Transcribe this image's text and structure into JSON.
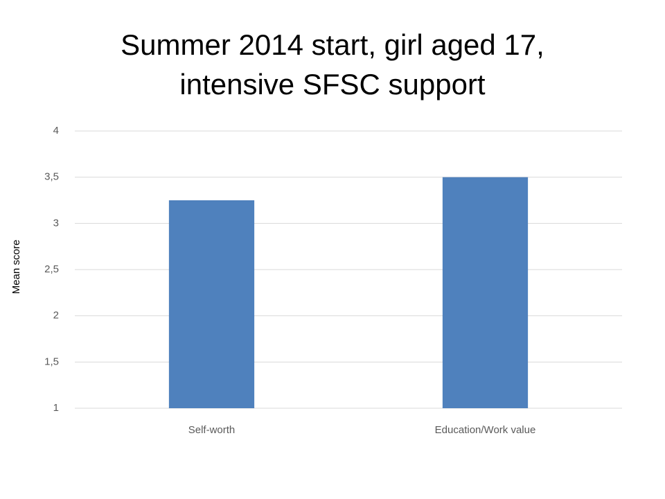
{
  "chart_data": {
    "type": "bar",
    "title": [
      "Summer 2014 start, girl aged 17,",
      "intensive SFSC support"
    ],
    "y_label": "Mean score",
    "categories": [
      "Self-worth",
      "Education/Work value"
    ],
    "values": [
      3.25,
      3.5
    ],
    "color": "#4f81bd",
    "ylim": [
      1,
      4
    ],
    "yticks": [
      1,
      {
        "value": 1.5,
        "label": "1,5"
      },
      2,
      {
        "value": 2.5,
        "label": "2,5"
      },
      3,
      {
        "value": 3.5,
        "label": "3,5"
      },
      4
    ],
    "grid": true
  }
}
